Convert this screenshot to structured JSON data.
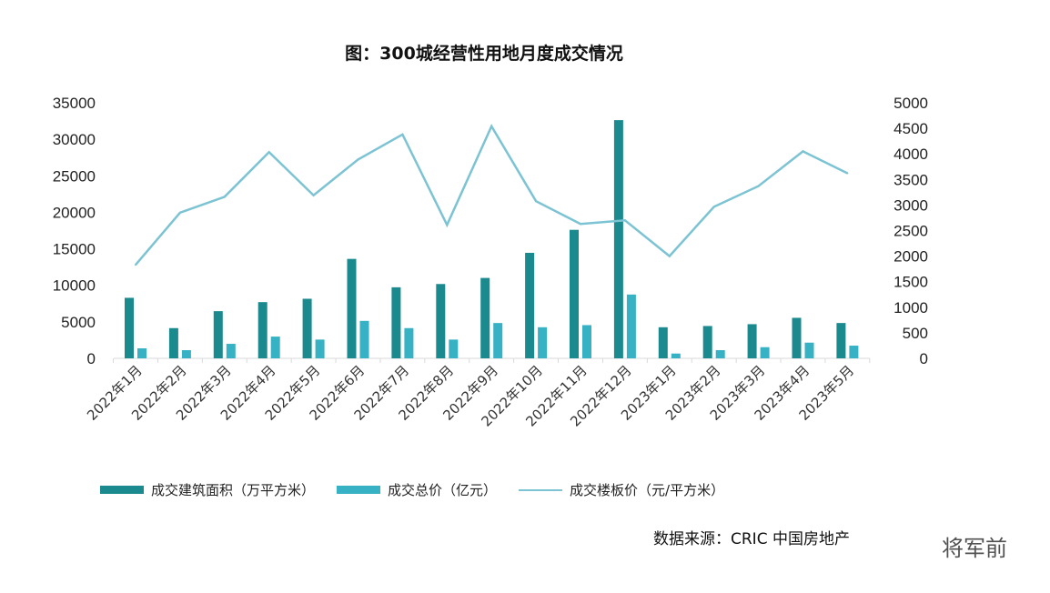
{
  "chart_data": {
    "type": "bar+line",
    "title": "图：300城经营性用地月度成交情况",
    "categories": [
      "2022年1月",
      "2022年2月",
      "2022年3月",
      "2022年4月",
      "2022年5月",
      "2022年6月",
      "2022年7月",
      "2022年8月",
      "2022年9月",
      "2022年10月",
      "2022年11月",
      "2022年12月",
      "2023年1月",
      "2023年2月",
      "2023年3月",
      "2023年4月",
      "2023年5月"
    ],
    "series": [
      {
        "name": "成交建筑面积（万平方米）",
        "type": "bar",
        "axis": "left",
        "color": "#1a8a8f",
        "values": [
          8290,
          4140,
          6460,
          7700,
          8160,
          13620,
          9730,
          10180,
          11010,
          14450,
          17600,
          32620,
          4260,
          4430,
          4680,
          5550,
          4840
        ]
      },
      {
        "name": "成交总价（亿元）",
        "type": "bar",
        "axis": "left",
        "color": "#37b2c5",
        "values": [
          1370,
          1120,
          1990,
          2980,
          2570,
          5130,
          4140,
          2570,
          4840,
          4260,
          4550,
          8740,
          660,
          1120,
          1530,
          2150,
          1740
        ]
      },
      {
        "name": "成交楼板价（元/平方米）",
        "type": "line",
        "axis": "right",
        "color": "#7cc3d3",
        "values": [
          1830,
          2850,
          3160,
          4035,
          3190,
          3890,
          4380,
          2610,
          4540,
          3075,
          2630,
          2700,
          2000,
          2965,
          3370,
          4050,
          3620
        ]
      }
    ],
    "left_axis": {
      "ylim": [
        0,
        35000
      ],
      "ticks": [
        "0",
        "5000",
        "10000",
        "15000",
        "20000",
        "25000",
        "30000",
        "35000"
      ]
    },
    "right_axis": {
      "ylim": [
        0,
        5000
      ],
      "ticks": [
        "0",
        "500",
        "1000",
        "1500",
        "2000",
        "2500",
        "3000",
        "3500",
        "4000",
        "4500",
        "5000"
      ]
    },
    "grid": false,
    "legend_position": "bottom"
  },
  "source": "数据来源：CRIC 中国房地产",
  "watermark": "将军前"
}
